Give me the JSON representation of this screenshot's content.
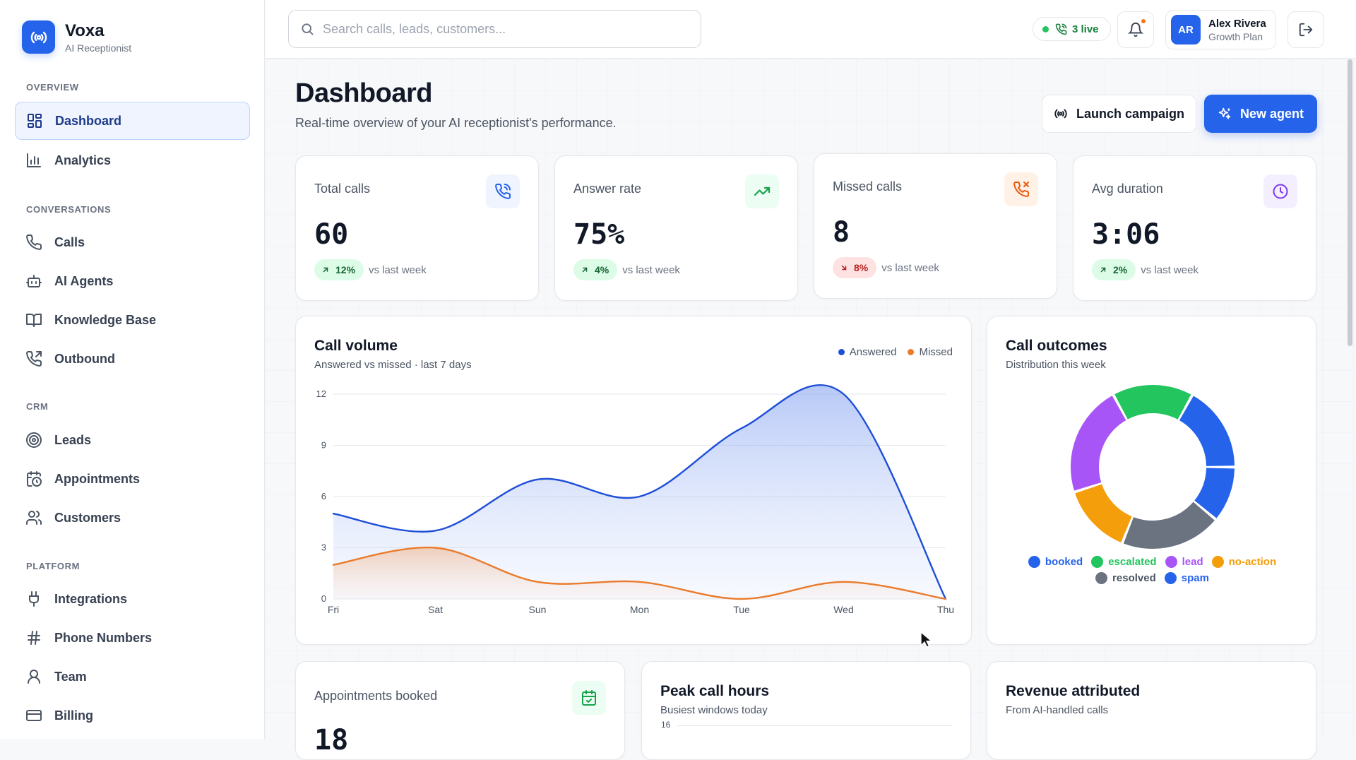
{
  "brand": {
    "name": "Voxa",
    "subtitle": "AI Receptionist"
  },
  "sidebar": {
    "sections": [
      {
        "label": "OVERVIEW"
      },
      {
        "label": "CONVERSATIONS"
      },
      {
        "label": "CRM"
      },
      {
        "label": "PLATFORM"
      }
    ],
    "items": [
      {
        "label": "Dashboard",
        "icon": "grid-icon",
        "active": true
      },
      {
        "label": "Analytics",
        "icon": "bar-chart-icon"
      },
      {
        "label": "Calls",
        "icon": "phone-icon"
      },
      {
        "label": "AI Agents",
        "icon": "bot-icon"
      },
      {
        "label": "Knowledge Base",
        "icon": "book-icon"
      },
      {
        "label": "Outbound",
        "icon": "phone-outgoing-icon"
      },
      {
        "label": "Leads",
        "icon": "target-icon"
      },
      {
        "label": "Appointments",
        "icon": "calendar-clock-icon"
      },
      {
        "label": "Customers",
        "icon": "users-icon"
      },
      {
        "label": "Integrations",
        "icon": "plug-icon"
      },
      {
        "label": "Phone Numbers",
        "icon": "hash-icon"
      },
      {
        "label": "Team",
        "icon": "user-icon"
      },
      {
        "label": "Billing",
        "icon": "credit-card-icon"
      }
    ]
  },
  "topbar": {
    "search_placeholder": "Search calls, leads, customers...",
    "live_label": "3 live",
    "user": {
      "initials": "AR",
      "name": "Alex Rivera",
      "plan": "Growth Plan"
    }
  },
  "header": {
    "title": "Dashboard",
    "subtitle": "Real-time overview of your AI receptionist's performance.",
    "launch_label": "Launch campaign",
    "new_agent_label": "New agent"
  },
  "stats": [
    {
      "label": "Total calls",
      "value": "60",
      "delta": "12%",
      "direction": "up",
      "note": "vs last week",
      "icon": "phone-icon",
      "accent": "#2563eb",
      "bg": "#eff4fe"
    },
    {
      "label": "Answer rate",
      "value": "75%",
      "delta": "4%",
      "direction": "up",
      "note": "vs last week",
      "icon": "trending-up-icon",
      "accent": "#16a34a",
      "bg": "#ecfdf3"
    },
    {
      "label": "Missed calls",
      "value": "8",
      "delta": "8%",
      "direction": "down",
      "note": "vs last week",
      "icon": "phone-missed-icon",
      "accent": "#ea580c",
      "bg": "#fff1e6"
    },
    {
      "label": "Avg duration",
      "value": "3:06",
      "delta": "2%",
      "direction": "up",
      "note": "vs last week",
      "icon": "clock-icon",
      "accent": "#7c3aed",
      "bg": "#f3efff"
    }
  ],
  "call_volume": {
    "title": "Call volume",
    "subtitle": "Answered vs missed · last 7 days",
    "legend": [
      "Answered",
      "Missed"
    ]
  },
  "call_outcomes": {
    "title": "Call outcomes",
    "subtitle": "Distribution this week"
  },
  "bottom_cards": {
    "appointments": {
      "label": "Appointments booked",
      "value": "18"
    },
    "peak": {
      "title": "Peak call hours",
      "subtitle": "Busiest windows today",
      "first_tick": "16"
    },
    "revenue": {
      "title": "Revenue attributed",
      "subtitle": "From AI-handled calls"
    }
  },
  "chart_data": [
    {
      "type": "area",
      "categories": [
        "Fri",
        "Sat",
        "Sun",
        "Mon",
        "Tue",
        "Wed",
        "Thu"
      ],
      "series": [
        {
          "name": "Answered",
          "values": [
            5,
            4,
            7,
            6,
            10,
            12,
            0
          ],
          "color": "#1d4ed8"
        },
        {
          "name": "Missed",
          "values": [
            2,
            3,
            1,
            1,
            0,
            1,
            0
          ],
          "color": "#ea7b2c"
        }
      ],
      "yticks": [
        0,
        3,
        6,
        9,
        12
      ],
      "ylim": [
        0,
        12
      ],
      "grid": true,
      "legend": "top-right"
    },
    {
      "type": "pie",
      "labels": [
        "booked",
        "escalated",
        "lead",
        "no-action",
        "resolved",
        "spam"
      ],
      "legend_colors": [
        "#2563eb",
        "#22c55e",
        "#a855f7",
        "#f59e0b",
        "#6b7280",
        "#2563eb"
      ],
      "segments": [
        {
          "name": "escalated",
          "value": 16,
          "color": "#22c55e"
        },
        {
          "name": "booked",
          "value": 17,
          "color": "#2563eb"
        },
        {
          "name": "spam",
          "value": 11,
          "color": "#2563eb"
        },
        {
          "name": "resolved",
          "value": 20,
          "color": "#6b7280"
        },
        {
          "name": "no-action",
          "value": 14,
          "color": "#f59e0b"
        },
        {
          "name": "lead",
          "value": 22,
          "color": "#a855f7"
        }
      ],
      "legend": "bottom"
    }
  ]
}
